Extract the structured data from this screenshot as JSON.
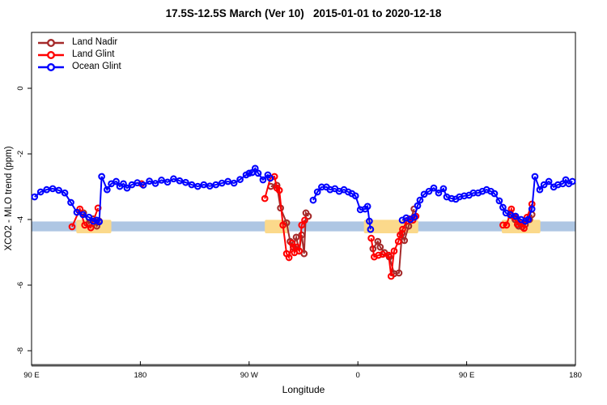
{
  "chart_data": {
    "type": "line",
    "title": "17.5S-12.5S March (Ver 10)   2015-01-01 to 2020-12-18",
    "xlabel": "Longitude",
    "ylabel": "XCO2 - MLO trend (ppm)",
    "x_axis_note": "longitude axis wraps around the globe: 90E to 180 to 90W to 0 to 90E to 180, mapped to linear coordinate 90..540",
    "xlim": [
      90,
      540
    ],
    "ylim": [
      -8.44,
      1.7
    ],
    "grid": false,
    "legend_position": "top-left",
    "xticks": {
      "positions": [
        90,
        180,
        270,
        360,
        450,
        540
      ],
      "labels": [
        "90 E",
        "180",
        "90 W",
        "0",
        "90 E",
        "180"
      ]
    },
    "yticks": {
      "positions": [
        0,
        -2,
        -4,
        -6,
        -8
      ],
      "labels": [
        "0",
        "-2",
        "-4",
        "-6",
        "-8"
      ]
    },
    "bands": {
      "ocean_strip": {
        "color": "#aec6e3",
        "x_range": [
          90,
          540
        ],
        "y_range": [
          -4.06,
          -4.36
        ]
      },
      "land_strips": {
        "color": "#fbd98b",
        "y_range": [
          -4.01,
          -4.42
        ],
        "segments": [
          [
            127,
            156
          ],
          [
            283,
            303
          ],
          [
            365,
            410
          ],
          [
            479,
            511
          ]
        ]
      }
    },
    "baseline": {
      "color": "#555555",
      "width": 3
    },
    "marker": "open-circle",
    "series": [
      {
        "name": "Land Nadir",
        "color": "#a52a2a",
        "segments": [
          [
            [
              133,
              -3.8
            ],
            [
              137.5,
              -4.12
            ],
            [
              141,
              -3.98
            ],
            [
              144,
              -4.2
            ],
            [
              146,
              -4.05
            ]
          ],
          [
            [
              288,
              -2.99
            ],
            [
              293,
              -2.96
            ],
            [
              296,
              -3.65
            ],
            [
              301,
              -4.1
            ],
            [
              304,
              -4.67
            ],
            [
              306.5,
              -4.84
            ],
            [
              309,
              -4.54
            ],
            [
              311.5,
              -4.96
            ],
            [
              313.5,
              -4.47
            ],
            [
              315.5,
              -5.04
            ],
            [
              317,
              -3.8
            ],
            [
              319,
              -3.9
            ]
          ],
          [
            [
              372.5,
              -4.89
            ],
            [
              376.5,
              -4.67
            ],
            [
              378.5,
              -4.84
            ],
            [
              382,
              -5.01
            ],
            [
              386,
              -5.14
            ],
            [
              390,
              -5.65
            ],
            [
              394,
              -5.63
            ],
            [
              396.5,
              -4.42
            ],
            [
              398.5,
              -4.64
            ],
            [
              402,
              -4.2
            ],
            [
              406.5,
              -3.68
            ]
          ],
          [
            [
              486.5,
              -3.88
            ],
            [
              490,
              -4.0
            ],
            [
              493,
              -4.2
            ],
            [
              496,
              -4.22
            ],
            [
              498.5,
              -4.15
            ],
            [
              502,
              -4.0
            ],
            [
              504,
              -3.85
            ]
          ]
        ]
      },
      {
        "name": "Land Glint",
        "color": "#ff0000",
        "segments": [
          [
            [
              123.5,
              -4.22
            ],
            [
              130,
              -3.68
            ],
            [
              134,
              -4.17
            ],
            [
              139,
              -4.25
            ],
            [
              145,
              -3.65
            ]
          ],
          [
            [
              181,
              -2.91
            ]
          ],
          [
            [
              283,
              -3.36
            ],
            [
              287.5,
              -2.74
            ],
            [
              291,
              -2.69
            ],
            [
              293,
              -3.04
            ],
            [
              295,
              -3.11
            ],
            [
              298,
              -4.17
            ],
            [
              301,
              -5.04
            ],
            [
              303,
              -5.16
            ],
            [
              305.5,
              -4.72
            ],
            [
              307.5,
              -5.01
            ],
            [
              309.5,
              -4.84
            ],
            [
              311.5,
              -4.96
            ],
            [
              313.5,
              -4.17
            ],
            [
              316,
              -4.02
            ]
          ],
          [
            [
              371,
              -4.57
            ],
            [
              373.5,
              -5.14
            ],
            [
              377,
              -5.09
            ],
            [
              380.5,
              -5.06
            ],
            [
              385.5,
              -5.09
            ],
            [
              387.5,
              -5.73
            ],
            [
              390,
              -4.96
            ],
            [
              393.5,
              -4.67
            ],
            [
              395,
              -4.47
            ],
            [
              397,
              -4.3
            ],
            [
              400.5,
              -4.05
            ],
            [
              403,
              -3.98
            ],
            [
              405.5,
              -4.02
            ],
            [
              408,
              -3.9
            ]
          ],
          [
            [
              480,
              -4.17
            ],
            [
              483,
              -4.17
            ],
            [
              487,
              -3.68
            ],
            [
              489.5,
              -3.93
            ],
            [
              492,
              -4.15
            ],
            [
              495,
              -4.1
            ],
            [
              497.5,
              -4.27
            ],
            [
              500,
              -3.93
            ],
            [
              504,
              -3.53
            ]
          ]
        ]
      },
      {
        "name": "Ocean Glint",
        "color": "#0000ff",
        "segments": [
          [
            [
              92.5,
              -3.31
            ],
            [
              97.5,
              -3.16
            ],
            [
              102.5,
              -3.09
            ],
            [
              107.5,
              -3.06
            ],
            [
              112.5,
              -3.11
            ],
            [
              117.5,
              -3.19
            ],
            [
              122.5,
              -3.48
            ],
            [
              127.5,
              -3.78
            ],
            [
              132.5,
              -3.85
            ],
            [
              137.5,
              -3.93
            ],
            [
              141,
              -4.05
            ],
            [
              144,
              -4.02
            ],
            [
              146,
              -4.07
            ],
            [
              148,
              -2.69
            ],
            [
              152.5,
              -3.09
            ],
            [
              156,
              -2.91
            ],
            [
              160,
              -2.84
            ],
            [
              163,
              -2.99
            ],
            [
              166,
              -2.91
            ],
            [
              169,
              -3.04
            ],
            [
              173,
              -2.94
            ],
            [
              177.5,
              -2.88
            ],
            [
              182.5,
              -2.95
            ],
            [
              187.5,
              -2.83
            ],
            [
              192.5,
              -2.9
            ],
            [
              197.5,
              -2.8
            ],
            [
              202.5,
              -2.86
            ],
            [
              207.5,
              -2.76
            ],
            [
              212.5,
              -2.82
            ],
            [
              217.5,
              -2.87
            ],
            [
              222.5,
              -2.94
            ],
            [
              227.5,
              -2.99
            ],
            [
              232.5,
              -2.94
            ],
            [
              237.5,
              -2.98
            ],
            [
              242.5,
              -2.94
            ],
            [
              247.5,
              -2.89
            ],
            [
              252.5,
              -2.84
            ],
            [
              257.5,
              -2.89
            ],
            [
              262.5,
              -2.78
            ],
            [
              267.5,
              -2.64
            ],
            [
              270,
              -2.59
            ],
            [
              272.5,
              -2.57
            ],
            [
              275,
              -2.44
            ],
            [
              277.5,
              -2.59
            ],
            [
              281.5,
              -2.79
            ],
            [
              285.5,
              -2.64
            ],
            [
              287.5,
              -2.74
            ]
          ],
          [
            [
              323,
              -3.41
            ],
            [
              326.5,
              -3.16
            ],
            [
              330,
              -3.01
            ],
            [
              334,
              -3.01
            ],
            [
              337,
              -3.09
            ],
            [
              341,
              -3.06
            ],
            [
              344.5,
              -3.14
            ],
            [
              348.5,
              -3.09
            ],
            [
              352,
              -3.16
            ],
            [
              355,
              -3.21
            ],
            [
              358,
              -3.28
            ],
            [
              362,
              -3.7
            ],
            [
              366,
              -3.68
            ],
            [
              368,
              -3.6
            ],
            [
              369.5,
              -4.05
            ],
            [
              370.5,
              -4.3
            ]
          ],
          [
            [
              396.7,
              -4.02
            ],
            [
              400,
              -3.95
            ],
            [
              403.4,
              -4.0
            ],
            [
              406.7,
              -3.93
            ],
            [
              409.4,
              -3.58
            ],
            [
              411.4,
              -3.41
            ],
            [
              414.8,
              -3.23
            ],
            [
              418.8,
              -3.14
            ],
            [
              422.8,
              -3.04
            ],
            [
              426.8,
              -3.19
            ],
            [
              430.8,
              -3.06
            ],
            [
              433.5,
              -3.31
            ],
            [
              437.5,
              -3.36
            ],
            [
              441,
              -3.38
            ],
            [
              444,
              -3.31
            ],
            [
              448,
              -3.28
            ],
            [
              452,
              -3.26
            ],
            [
              455.5,
              -3.19
            ],
            [
              459.5,
              -3.19
            ],
            [
              463,
              -3.14
            ],
            [
              466.5,
              -3.09
            ],
            [
              470,
              -3.14
            ],
            [
              473,
              -3.21
            ],
            [
              477,
              -3.43
            ],
            [
              480,
              -3.63
            ],
            [
              482.5,
              -3.8
            ],
            [
              486,
              -3.85
            ],
            [
              490.5,
              -3.9
            ],
            [
              495,
              -4.0
            ],
            [
              498.5,
              -4.05
            ],
            [
              501,
              -4.0
            ],
            [
              504,
              -3.68
            ],
            [
              506.5,
              -2.69
            ],
            [
              510.5,
              -3.09
            ],
            [
              514,
              -2.94
            ],
            [
              518,
              -2.84
            ],
            [
              522,
              -3.01
            ],
            [
              525.5,
              -2.94
            ],
            [
              529.5,
              -2.91
            ],
            [
              532,
              -2.79
            ],
            [
              534.5,
              -2.91
            ],
            [
              537.5,
              -2.84
            ]
          ]
        ]
      }
    ]
  }
}
